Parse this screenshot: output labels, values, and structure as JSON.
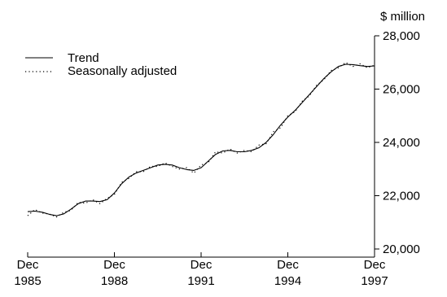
{
  "chart_data": {
    "type": "line",
    "title": "",
    "ylabel": "$ million",
    "xlabel": "",
    "ylim": [
      20000,
      28000
    ],
    "xlim": [
      "Dec 1985",
      "Dec 1997"
    ],
    "y_ticks": [
      20000,
      22000,
      24000,
      26000,
      28000
    ],
    "y_tick_labels": [
      "20,000",
      "22,000",
      "24,000",
      "26,000",
      "28,000"
    ],
    "x_ticks": [
      "Dec 1985",
      "Dec 1988",
      "Dec 1991",
      "Dec 1994",
      "Dec 1997"
    ],
    "x_tick_labels": [
      {
        "month": "Dec",
        "year": "1985"
      },
      {
        "month": "Dec",
        "year": "1988"
      },
      {
        "month": "Dec",
        "year": "1991"
      },
      {
        "month": "Dec",
        "year": "1994"
      },
      {
        "month": "Dec",
        "year": "1997"
      }
    ],
    "y_axis_side": "right",
    "grid": false,
    "legend": {
      "position": "top-left"
    },
    "series": [
      {
        "name": "Trend",
        "style": "solid",
        "color": "#000000",
        "x": [
          "Dec 1985",
          "Mar 1986",
          "Jun 1986",
          "Sep 1986",
          "Dec 1986",
          "Mar 1987",
          "Jun 1987",
          "Sep 1987",
          "Dec 1987",
          "Mar 1988",
          "Jun 1988",
          "Sep 1988",
          "Dec 1988",
          "Mar 1989",
          "Jun 1989",
          "Sep 1989",
          "Dec 1989",
          "Mar 1990",
          "Jun 1990",
          "Sep 1990",
          "Dec 1990",
          "Mar 1991",
          "Jun 1991",
          "Sep 1991",
          "Dec 1991",
          "Mar 1992",
          "Jun 1992",
          "Sep 1992",
          "Dec 1992",
          "Mar 1993",
          "Jun 1993",
          "Sep 1993",
          "Dec 1993",
          "Mar 1994",
          "Jun 1994",
          "Sep 1994",
          "Dec 1994",
          "Mar 1995",
          "Jun 1995",
          "Sep 1995",
          "Dec 1995",
          "Mar 1996",
          "Jun 1996",
          "Sep 1996",
          "Dec 1996",
          "Mar 1997",
          "Jun 1997",
          "Sep 1997",
          "Dec 1997"
        ],
        "values": [
          21400,
          21420,
          21380,
          21300,
          21250,
          21320,
          21500,
          21700,
          21800,
          21800,
          21780,
          21850,
          22100,
          22450,
          22700,
          22850,
          22950,
          23050,
          23150,
          23180,
          23150,
          23050,
          22980,
          22950,
          23050,
          23300,
          23550,
          23680,
          23700,
          23650,
          23650,
          23700,
          23800,
          24000,
          24300,
          24650,
          24950,
          25200,
          25500,
          25800,
          26100,
          26400,
          26650,
          26850,
          26930,
          26920,
          26880,
          26850,
          26870
        ]
      },
      {
        "name": "Seasonally adjusted",
        "style": "dotted",
        "color": "#000000",
        "x": [
          "Dec 1985",
          "Mar 1986",
          "Jun 1986",
          "Sep 1986",
          "Dec 1986",
          "Mar 1987",
          "Jun 1987",
          "Sep 1987",
          "Dec 1987",
          "Mar 1988",
          "Jun 1988",
          "Sep 1988",
          "Dec 1988",
          "Mar 1989",
          "Jun 1989",
          "Sep 1989",
          "Dec 1989",
          "Mar 1990",
          "Jun 1990",
          "Sep 1990",
          "Dec 1990",
          "Mar 1991",
          "Jun 1991",
          "Sep 1991",
          "Dec 1991",
          "Mar 1992",
          "Jun 1992",
          "Sep 1992",
          "Dec 1992",
          "Mar 1993",
          "Jun 1993",
          "Sep 1993",
          "Dec 1993",
          "Mar 1994",
          "Jun 1994",
          "Sep 1994",
          "Dec 1994",
          "Mar 1995",
          "Jun 1995",
          "Sep 1995",
          "Dec 1995",
          "Mar 1996",
          "Jun 1996",
          "Sep 1996",
          "Dec 1996",
          "Mar 1997",
          "Jun 1997",
          "Sep 1997",
          "Dec 1997"
        ],
        "values": [
          21250,
          21480,
          21350,
          21310,
          21200,
          21380,
          21450,
          21750,
          21720,
          21850,
          21700,
          21900,
          22050,
          22500,
          22650,
          22900,
          22900,
          23100,
          23100,
          23230,
          23100,
          23000,
          23050,
          22850,
          23150,
          23250,
          23650,
          23600,
          23750,
          23600,
          23700,
          23650,
          23900,
          23950,
          24400,
          24550,
          25000,
          25150,
          25550,
          25750,
          26150,
          26350,
          26700,
          26800,
          27000,
          26850,
          26950,
          26800,
          26900
        ]
      }
    ]
  }
}
